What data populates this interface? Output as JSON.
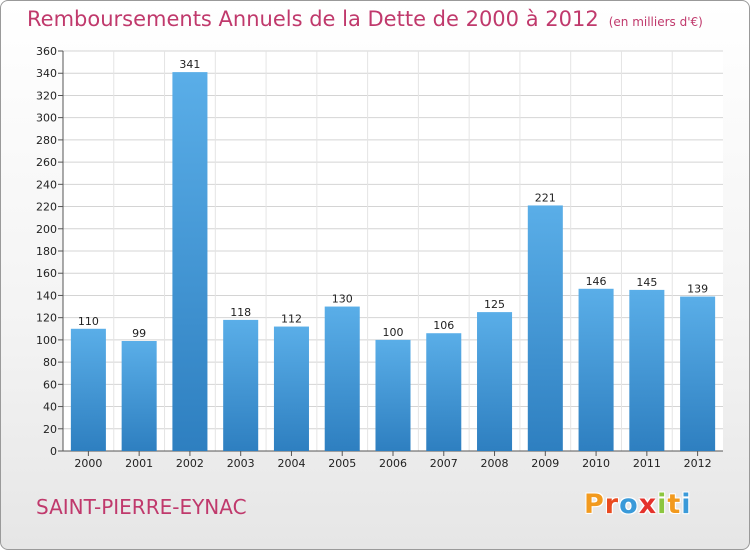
{
  "chart_data": {
    "type": "bar",
    "title": "Remboursements Annuels de la Dette de 2000 à 2012",
    "subtitle": "(en milliers d'€)",
    "categories": [
      "2000",
      "2001",
      "2002",
      "2003",
      "2004",
      "2005",
      "2006",
      "2007",
      "2008",
      "2009",
      "2010",
      "2011",
      "2012"
    ],
    "values": [
      110,
      99,
      341,
      118,
      112,
      130,
      100,
      106,
      125,
      221,
      146,
      145,
      139
    ],
    "ylim": [
      0,
      360
    ],
    "ytick_step": 20,
    "grid": true,
    "bar_color_top": "#5aaee8",
    "bar_color_bottom": "#2e7fc0"
  },
  "footer": {
    "town": "SAINT-PIERRE-EYNAC",
    "logo_letters": [
      "P",
      "r",
      "o",
      "x",
      "i",
      "t",
      "i"
    ],
    "logo_colors": [
      "#f29a1e",
      "#e94a1f",
      "#3a9ad9",
      "#e4322b",
      "#8cc63f",
      "#f29a1e",
      "#3a9ad9"
    ]
  }
}
